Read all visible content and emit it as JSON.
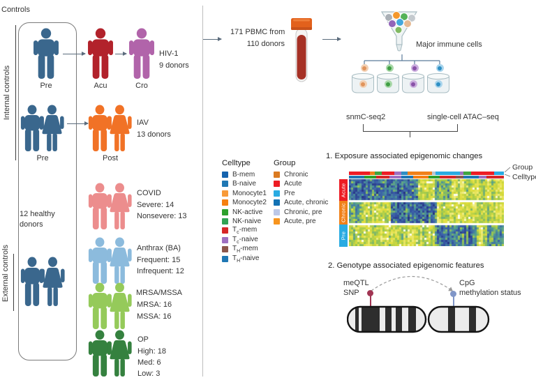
{
  "left": {
    "controls": "Controls",
    "internal": "Internal controls",
    "external": "External controls",
    "healthy1": "12 healthy",
    "healthy2": "donors",
    "hiv": {
      "pre": "Pre",
      "acu": "Acu",
      "cro": "Cro",
      "name": "HIV-1",
      "donors": "9 donors"
    },
    "iav": {
      "pre": "Pre",
      "post": "Post",
      "name": "IAV",
      "donors": "13 donors"
    },
    "covid": {
      "name": "COVID",
      "l1": "Severe: 14",
      "l2": "Nonsevere: 13"
    },
    "anthrax": {
      "name": "Anthrax (BA)",
      "l1": "Frequent: 15",
      "l2": "Infrequent: 12"
    },
    "mrsa": {
      "name": "MRSA/MSSA",
      "l1": "MRSA: 16",
      "l2": "MSSA: 16"
    },
    "op": {
      "name": "OP",
      "l1": "High: 18",
      "l2": "Med: 6",
      "l3": "Low: 3"
    },
    "colors": {
      "internal": "#3a678d",
      "acu": "#b2222b",
      "cro": "#b164aa",
      "iav": "#f17226",
      "covid": "#ec8d8d",
      "anthrax": "#8cbbdd",
      "mrsa": "#95ca5a",
      "op": "#35813f"
    }
  },
  "pipeline": {
    "pbmc1": "171 PBMC from",
    "pbmc2": "110 donors",
    "major": "Major immune cells",
    "m1": "snmC-seq2",
    "m2": "single-cell ATAC–seq",
    "cells": [
      {
        "outer": "#f2d0b3",
        "inner": "#e0945c"
      },
      {
        "outer": "#a8d8a8",
        "inner": "#3f9e44"
      },
      {
        "outer": "#cbaede",
        "inner": "#8952a8"
      },
      {
        "outer": "#a8d4ec",
        "inner": "#2e8fc4"
      }
    ]
  },
  "analysis1": {
    "title": "1. Exposure associated epigenomic changes",
    "group": "Group",
    "celltype": "Celltype"
  },
  "analysis2": {
    "title": "2. Genotype associated epigenomic features",
    "meqtl1": "meQTL",
    "meqtl2": "SNP",
    "cpg1": "CpG",
    "cpg2": "methylation status",
    "snp_color": "#a13553",
    "cpg_color": "#8096c8"
  },
  "legend_celltype": {
    "title": "Celltype",
    "items": [
      {
        "pre": "B-mem",
        "sub": "",
        "post": "",
        "color": "#1563ae"
      },
      {
        "pre": "B-naive",
        "sub": "",
        "post": "",
        "color": "#1f77b4"
      },
      {
        "pre": "Monocyte1",
        "sub": "",
        "post": "",
        "color": "#f89a38"
      },
      {
        "pre": "Monocyte2",
        "sub": "",
        "post": "",
        "color": "#f68011"
      },
      {
        "pre": "NK-active",
        "sub": "",
        "post": "",
        "color": "#2ca02c"
      },
      {
        "pre": "NK-naive",
        "sub": "",
        "post": "",
        "color": "#31a354"
      },
      {
        "pre": "T",
        "sub": "c",
        "post": "-mem",
        "color": "#d62728"
      },
      {
        "pre": "T",
        "sub": "c",
        "post": "-naive",
        "color": "#9e70c1"
      },
      {
        "pre": "T",
        "sub": "H",
        "post": "-mem",
        "color": "#8c564b"
      },
      {
        "pre": "T",
        "sub": "H",
        "post": "-naive",
        "color": "#1f77b4"
      }
    ]
  },
  "legend_group": {
    "title": "Group",
    "items": [
      {
        "pre": "Chronic",
        "sub": "",
        "post": "",
        "color": "#db7b21"
      },
      {
        "pre": "Acute",
        "sub": "",
        "post": "",
        "color": "#ed1c24"
      },
      {
        "pre": "Pre",
        "sub": "",
        "post": "",
        "color": "#29abe2"
      },
      {
        "pre": "Acute, chronic",
        "sub": "",
        "post": "",
        "color": "#1272b5"
      },
      {
        "pre": "Chronic, pre",
        "sub": "",
        "post": "",
        "color": "#bcc8e8"
      },
      {
        "pre": "Acute, pre",
        "sub": "",
        "post": "",
        "color": "#f7941e"
      }
    ]
  },
  "heatmap": {
    "sections": [
      "Acute",
      "Chronic",
      "Pre"
    ],
    "section_colors": [
      "#ed1c24",
      "#f08119",
      "#29abe2"
    ],
    "palette": [
      [
        0,
        "#232d7d"
      ],
      [
        0.28,
        "#3a5fa9"
      ],
      [
        0.45,
        "#4f9b94"
      ],
      [
        0.62,
        "#9cc84f"
      ],
      [
        0.78,
        "#e0dd3a"
      ],
      [
        0.93,
        "#eeeb7a"
      ],
      [
        1,
        "#fdfdf0"
      ]
    ],
    "cols": 74,
    "rows_per_section": 10,
    "blocks": [
      {
        "s": 0,
        "c0": 0.0,
        "c1": 0.44,
        "amt": 0.55
      },
      {
        "s": 0,
        "c0": 0.55,
        "c1": 0.66,
        "amt": 0.3
      },
      {
        "s": 1,
        "c0": 0.27,
        "c1": 0.56,
        "amt": 0.55
      },
      {
        "s": 1,
        "c0": 0.0,
        "c1": 0.08,
        "amt": 0.25
      },
      {
        "s": 2,
        "c0": 0.55,
        "c1": 0.82,
        "amt": 0.5
      },
      {
        "s": 2,
        "c0": 0.88,
        "c1": 1.0,
        "amt": 0.35
      }
    ],
    "group_bar": [
      {
        "c": "#ed1c24",
        "w": 13
      },
      {
        "c": "#f08119",
        "w": 3
      },
      {
        "c": "#3fa53f",
        "w": 4
      },
      {
        "c": "#ed1c24",
        "w": 8
      },
      {
        "c": "#9e70c1",
        "w": 4
      },
      {
        "c": "#2e8fc4",
        "w": 4
      },
      {
        "c": "#f08119",
        "w": 15
      },
      {
        "c": "#b9c4cf",
        "w": 2
      },
      {
        "c": "#29abe2",
        "w": 15
      },
      {
        "c": "#9e70c1",
        "w": 2
      },
      {
        "c": "#3fa53f",
        "w": 5
      },
      {
        "c": "#ed1c24",
        "w": 14
      },
      {
        "c": "#29abe2",
        "w": 6
      }
    ],
    "celltype_bar": [
      {
        "c": "#1f77b4",
        "w": 8
      },
      {
        "c": "#2ca02c",
        "w": 6
      },
      {
        "c": "#d62728",
        "w": 7
      },
      {
        "c": "#9e70c1",
        "w": 6
      },
      {
        "c": "#1f77b4",
        "w": 6
      },
      {
        "c": "#f68011",
        "w": 8
      },
      {
        "c": "#2ca02c",
        "w": 6
      },
      {
        "c": "#d62728",
        "w": 8
      },
      {
        "c": "#8c564b",
        "w": 4
      },
      {
        "c": "#1f77b4",
        "w": 8
      },
      {
        "c": "#9e70c1",
        "w": 4
      },
      {
        "c": "#d62728",
        "w": 9
      }
    ]
  }
}
